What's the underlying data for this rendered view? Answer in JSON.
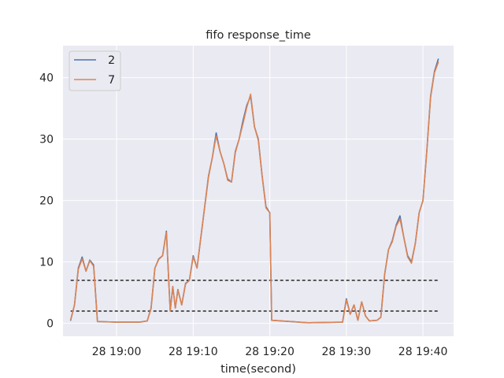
{
  "chart_data": {
    "type": "line",
    "title": "fifo response_time",
    "xlabel": "time(second)",
    "ylabel": "",
    "x_ticks": [
      "28 19:00",
      "28 19:10",
      "28 19:20",
      "28 19:30",
      "28 19:40"
    ],
    "y_ticks": [
      0,
      10,
      20,
      30,
      40
    ],
    "xlim": [
      "28 18:53",
      "28 19:44"
    ],
    "ylim": [
      -2.1,
      45.2
    ],
    "grid": true,
    "legend": "top-left",
    "series": [
      {
        "name": "2",
        "color": "#4c72b0",
        "points": [
          [
            "28 18:54:00",
            0.5
          ],
          [
            "28 18:54:30",
            3
          ],
          [
            "28 18:55:00",
            9
          ],
          [
            "28 18:55:30",
            10.8
          ],
          [
            "28 18:56:00",
            8.5
          ],
          [
            "28 18:56:30",
            10.3
          ],
          [
            "28 18:57:00",
            9.5
          ],
          [
            "28 18:57:30",
            0.3
          ],
          [
            "28 19:00:00",
            0.2
          ],
          [
            "28 19:03:00",
            0.2
          ],
          [
            "28 19:04:00",
            0.4
          ],
          [
            "28 19:04:30",
            2.5
          ],
          [
            "28 19:05:00",
            9
          ],
          [
            "28 19:05:30",
            10.5
          ],
          [
            "28 19:06:00",
            11
          ],
          [
            "28 19:06:30",
            15
          ],
          [
            "28 19:07:00",
            2
          ],
          [
            "28 19:07:20",
            6
          ],
          [
            "28 19:07:40",
            2.5
          ],
          [
            "28 19:08:00",
            5.5
          ],
          [
            "28 19:08:30",
            3
          ],
          [
            "28 19:09:00",
            6.5
          ],
          [
            "28 19:09:30",
            7
          ],
          [
            "28 19:10:00",
            11
          ],
          [
            "28 19:10:30",
            9
          ],
          [
            "28 19:11:00",
            14
          ],
          [
            "28 19:12:00",
            24
          ],
          [
            "28 19:12:30",
            27
          ],
          [
            "28 19:13:00",
            31
          ],
          [
            "28 19:13:30",
            28
          ],
          [
            "28 19:14:00",
            26
          ],
          [
            "28 19:14:30",
            23.5
          ],
          [
            "28 19:15:00",
            23
          ],
          [
            "28 19:15:30",
            28
          ],
          [
            "28 19:16:00",
            30
          ],
          [
            "28 19:16:30",
            33
          ],
          [
            "28 19:17:00",
            35.5
          ],
          [
            "28 19:17:30",
            37
          ],
          [
            "28 19:18:00",
            32
          ],
          [
            "28 19:18:30",
            30
          ],
          [
            "28 19:19:00",
            24
          ],
          [
            "28 19:19:30",
            19
          ],
          [
            "28 19:20:00",
            18
          ],
          [
            "28 19:20:15",
            0.5
          ],
          [
            "28 19:25:00",
            0.1
          ],
          [
            "28 19:29:30",
            0.2
          ],
          [
            "28 19:30:00",
            4
          ],
          [
            "28 19:30:30",
            1.5
          ],
          [
            "28 19:31:00",
            3
          ],
          [
            "28 19:31:30",
            0.5
          ],
          [
            "28 19:32:00",
            3.5
          ],
          [
            "28 19:32:30",
            1.2
          ],
          [
            "28 19:33:00",
            0.4
          ],
          [
            "28 19:34:00",
            0.5
          ],
          [
            "28 19:34:30",
            1
          ],
          [
            "28 19:35:00",
            8
          ],
          [
            "28 19:35:30",
            12
          ],
          [
            "28 19:36:00",
            13.5
          ],
          [
            "28 19:36:30",
            16
          ],
          [
            "28 19:37:00",
            17.5
          ],
          [
            "28 19:37:30",
            14
          ],
          [
            "28 19:38:00",
            11
          ],
          [
            "28 19:38:30",
            10
          ],
          [
            "28 19:39:00",
            13
          ],
          [
            "28 19:39:30",
            18
          ],
          [
            "28 19:40:00",
            20
          ],
          [
            "28 19:40:30",
            28
          ],
          [
            "28 19:41:00",
            37
          ],
          [
            "28 19:41:30",
            41
          ],
          [
            "28 19:42:00",
            43
          ]
        ]
      },
      {
        "name": "7",
        "color": "#dd8452",
        "points": [
          [
            "28 18:54:00",
            0.6
          ],
          [
            "28 18:54:30",
            3
          ],
          [
            "28 18:55:00",
            8.8
          ],
          [
            "28 18:55:30",
            10.5
          ],
          [
            "28 18:56:00",
            8.5
          ],
          [
            "28 18:56:30",
            10.2
          ],
          [
            "28 18:57:00",
            9.3
          ],
          [
            "28 18:57:30",
            0.3
          ],
          [
            "28 19:00:00",
            0.2
          ],
          [
            "28 19:03:00",
            0.2
          ],
          [
            "28 19:04:00",
            0.4
          ],
          [
            "28 19:04:30",
            2.4
          ],
          [
            "28 19:05:00",
            9
          ],
          [
            "28 19:05:30",
            10.4
          ],
          [
            "28 19:06:00",
            11
          ],
          [
            "28 19:06:30",
            14.8
          ],
          [
            "28 19:07:00",
            2
          ],
          [
            "28 19:07:20",
            6
          ],
          [
            "28 19:07:40",
            2.5
          ],
          [
            "28 19:08:00",
            5.4
          ],
          [
            "28 19:08:30",
            3
          ],
          [
            "28 19:09:00",
            6.4
          ],
          [
            "28 19:09:30",
            7
          ],
          [
            "28 19:10:00",
            10.8
          ],
          [
            "28 19:10:30",
            9
          ],
          [
            "28 19:11:00",
            14
          ],
          [
            "28 19:12:00",
            23.8
          ],
          [
            "28 19:12:30",
            27
          ],
          [
            "28 19:13:00",
            30.5
          ],
          [
            "28 19:13:30",
            28
          ],
          [
            "28 19:14:00",
            26
          ],
          [
            "28 19:14:30",
            23.3
          ],
          [
            "28 19:15:00",
            23
          ],
          [
            "28 19:15:30",
            27.8
          ],
          [
            "28 19:16:00",
            30
          ],
          [
            "28 19:16:30",
            32.5
          ],
          [
            "28 19:17:00",
            35.2
          ],
          [
            "28 19:17:30",
            37.3
          ],
          [
            "28 19:18:00",
            32
          ],
          [
            "28 19:18:30",
            29.8
          ],
          [
            "28 19:19:00",
            24
          ],
          [
            "28 19:19:30",
            18.8
          ],
          [
            "28 19:20:00",
            18
          ],
          [
            "28 19:20:15",
            0.5
          ],
          [
            "28 19:25:00",
            0.1
          ],
          [
            "28 19:29:30",
            0.2
          ],
          [
            "28 19:30:00",
            3.8
          ],
          [
            "28 19:30:30",
            1.5
          ],
          [
            "28 19:31:00",
            3
          ],
          [
            "28 19:31:30",
            0.5
          ],
          [
            "28 19:32:00",
            3.5
          ],
          [
            "28 19:32:30",
            1.2
          ],
          [
            "28 19:33:00",
            0.4
          ],
          [
            "28 19:34:00",
            0.5
          ],
          [
            "28 19:34:30",
            1
          ],
          [
            "28 19:35:00",
            8
          ],
          [
            "28 19:35:30",
            12
          ],
          [
            "28 19:36:00",
            13.3
          ],
          [
            "28 19:36:30",
            15.8
          ],
          [
            "28 19:37:00",
            17
          ],
          [
            "28 19:37:30",
            14
          ],
          [
            "28 19:38:00",
            10.8
          ],
          [
            "28 19:38:30",
            9.8
          ],
          [
            "28 19:39:00",
            13
          ],
          [
            "28 19:39:30",
            18
          ],
          [
            "28 19:40:00",
            20
          ],
          [
            "28 19:40:30",
            28
          ],
          [
            "28 19:41:00",
            36.8
          ],
          [
            "28 19:41:30",
            40.8
          ],
          [
            "28 19:42:00",
            42.5
          ]
        ]
      }
    ],
    "hlines": [
      {
        "y": 7,
        "style": "dashed",
        "color": "#000000",
        "x_start": "28 18:54:00",
        "x_end": "28 19:42:00"
      },
      {
        "y": 2,
        "style": "dashed",
        "color": "#000000",
        "x_start": "28 18:54:00",
        "x_end": "28 19:42:00"
      }
    ]
  }
}
